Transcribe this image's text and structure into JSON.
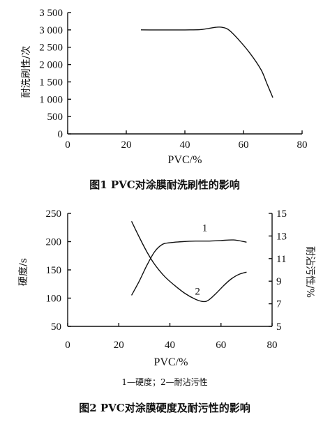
{
  "chart_data": [
    {
      "type": "line",
      "xlabel": "PVC/%",
      "ylabel": "耐洗刷性/次",
      "xlim": [
        0,
        80
      ],
      "ylim": [
        0,
        3500
      ],
      "xticks": [
        "0",
        "20",
        "40",
        "60",
        "80"
      ],
      "yticks": [
        "0",
        "500",
        "1 000",
        "1 500",
        "2 000",
        "2 500",
        "3 000",
        "3 500"
      ],
      "caption": "图1  PVC对涂膜耐洗刷性的影响",
      "grid": false,
      "series": [
        {
          "x": [
            25,
            30,
            35,
            40,
            45,
            48,
            51,
            53,
            55,
            58,
            62,
            66,
            68,
            70
          ],
          "y": [
            3000,
            3000,
            3000,
            3000,
            3005,
            3040,
            3080,
            3070,
            3000,
            2750,
            2350,
            1850,
            1450,
            1050
          ]
        }
      ]
    },
    {
      "type": "line",
      "xlabel": "PVC/%",
      "ylabel": "硬度/s",
      "y2label": "耐沾污性/%",
      "xlim": [
        0,
        80
      ],
      "ylim": [
        50,
        250
      ],
      "y2lim": [
        5,
        15
      ],
      "xticks": [
        "0",
        "20",
        "40",
        "60",
        "80"
      ],
      "yticks": [
        "50",
        "100",
        "150",
        "200",
        "250"
      ],
      "y2ticks": [
        "5",
        "7",
        "9",
        "11",
        "13",
        "15"
      ],
      "legend": "1—硬度；2—耐沾污性",
      "caption": "图2  PVC对涂膜硬度及耐污性的影响",
      "grid": false,
      "series": [
        {
          "name": "1",
          "axis": "left",
          "x": [
            25,
            28,
            31,
            34,
            37,
            40,
            45,
            50,
            55,
            60,
            65,
            70
          ],
          "y": [
            105,
            130,
            158,
            182,
            195,
            198,
            200,
            201,
            201,
            202,
            203,
            199
          ]
        },
        {
          "name": "2",
          "axis": "right",
          "x": [
            25,
            28,
            31,
            34,
            38,
            42,
            46,
            50,
            53,
            55,
            58,
            61,
            64,
            67,
            70
          ],
          "y": [
            14.3,
            12.9,
            11.6,
            10.5,
            9.4,
            8.6,
            7.9,
            7.4,
            7.2,
            7.3,
            7.9,
            8.6,
            9.2,
            9.6,
            9.8
          ]
        }
      ]
    }
  ]
}
